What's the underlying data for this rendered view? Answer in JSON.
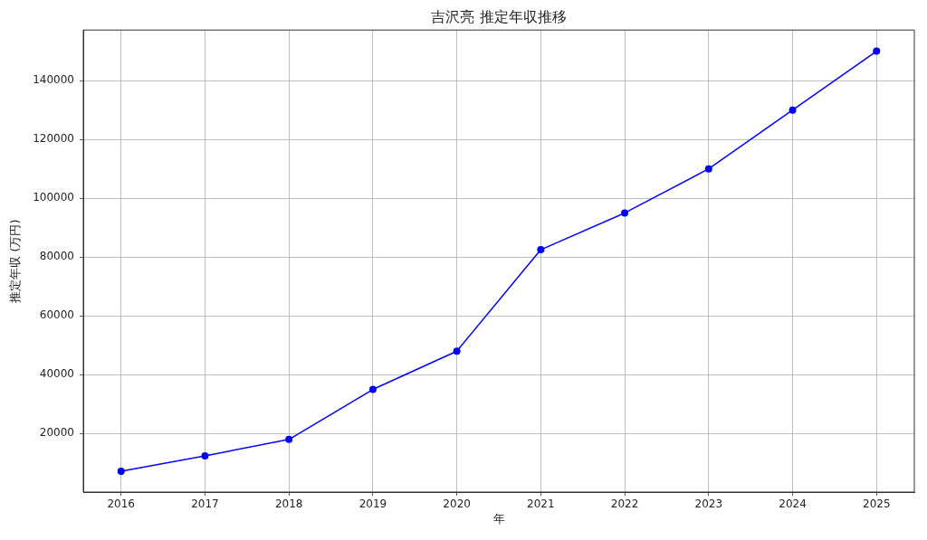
{
  "chart_data": {
    "type": "line",
    "title": "吉沢亮 推定年収推移",
    "xlabel": "年",
    "ylabel": "推定年収 (万円)",
    "x": [
      2016,
      2017,
      2018,
      2019,
      2020,
      2021,
      2022,
      2023,
      2024,
      2025
    ],
    "series": [
      {
        "color": "#0000ff",
        "values": [
          7200,
          12400,
          18000,
          35000,
          48000,
          82500,
          95000,
          110000,
          130000,
          150000
        ]
      }
    ],
    "xlim": [
      2015.55,
      2025.45
    ],
    "xticks": [
      2016,
      2017,
      2018,
      2019,
      2020,
      2021,
      2022,
      2023,
      2024,
      2025
    ],
    "ylim": [
      100,
      157200
    ],
    "yticks": [
      20000,
      40000,
      60000,
      80000,
      100000,
      120000,
      140000
    ],
    "grid": true,
    "marker": "circle",
    "line_style": "solid"
  }
}
